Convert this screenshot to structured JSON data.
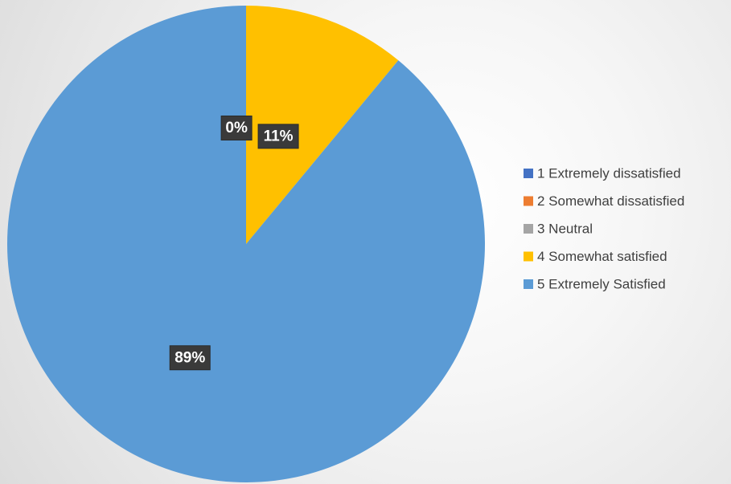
{
  "chart_data": {
    "type": "pie",
    "categories": [
      "1 Extremely dissatisfied",
      "2 Somewhat dissatisfied",
      "3 Neutral",
      "4 Somewhat satisfied",
      "5 Extremely Satisfied"
    ],
    "values": [
      0,
      0,
      0,
      11,
      89
    ],
    "data_labels": [
      "0%",
      "",
      "",
      "11%",
      "89%"
    ],
    "colors": [
      "#4472C4",
      "#ED7D31",
      "#A5A5A5",
      "#FFC000",
      "#5B9BD5"
    ],
    "legend_position": "right",
    "start_angle": "12 o'clock",
    "direction": "clockwise"
  }
}
